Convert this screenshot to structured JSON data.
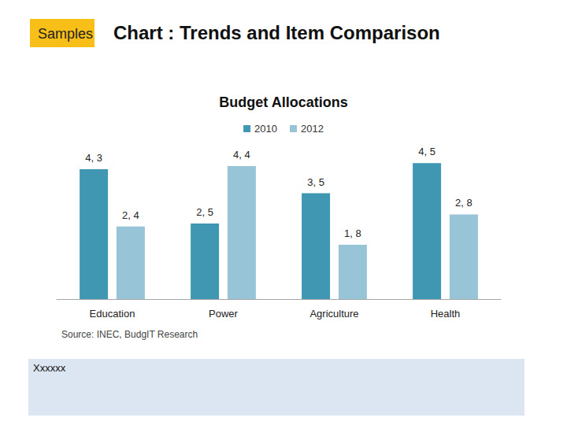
{
  "header": {
    "tag": "Samples",
    "title": "Chart : Trends and Item Comparison"
  },
  "source": "Source: INEC, BudgIT Research",
  "note": "Xxxxxx",
  "chart_data": {
    "type": "bar",
    "title": "Budget Allocations",
    "categories": [
      "Education",
      "Power",
      "Agriculture",
      "Health"
    ],
    "series": [
      {
        "name": "2010",
        "color": "#3f97b1",
        "values": [
          4.3,
          2.5,
          3.5,
          4.5
        ],
        "value_labels": [
          "4, 3",
          "2, 5",
          "3, 5",
          "4, 5"
        ]
      },
      {
        "name": "2012",
        "color": "#97c4d6",
        "values": [
          2.4,
          4.4,
          1.8,
          2.8
        ],
        "value_labels": [
          "2, 4",
          "4, 4",
          "1, 8",
          "2, 8"
        ]
      }
    ],
    "ylim": [
      0,
      5
    ],
    "yticks": [
      0,
      5
    ],
    "grid": false,
    "legend": "top",
    "data_labels": true,
    "tick_labels": "x"
  }
}
